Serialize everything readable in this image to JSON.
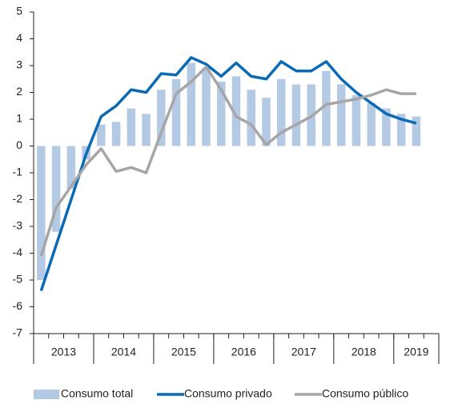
{
  "chart_data": {
    "type": "bar-line",
    "categories": [
      null,
      null,
      null,
      null,
      null,
      null,
      null,
      null,
      null,
      null,
      null,
      null,
      null,
      null,
      null,
      null,
      null,
      null,
      null,
      null,
      null,
      null,
      null,
      null,
      null,
      null,
      null
    ],
    "year_groups": [
      {
        "label": "2013",
        "n": 4
      },
      {
        "label": "2014",
        "n": 4
      },
      {
        "label": "2015",
        "n": 4
      },
      {
        "label": "2016",
        "n": 4
      },
      {
        "label": "2017",
        "n": 4
      },
      {
        "label": "2018",
        "n": 4
      },
      {
        "label": "2019",
        "n": 3
      }
    ],
    "series": [
      {
        "name": "Consumo total",
        "kind": "bar",
        "color": "#b4c9e4",
        "values": [
          -5.0,
          -3.2,
          -1.6,
          -0.5,
          0.8,
          0.9,
          1.4,
          1.2,
          2.1,
          2.5,
          3.1,
          2.9,
          2.4,
          2.6,
          2.1,
          1.8,
          2.5,
          2.3,
          2.3,
          2.8,
          2.3,
          1.9,
          1.6,
          1.4,
          1.2,
          1.1,
          null
        ]
      },
      {
        "name": "Consumo privado",
        "kind": "line",
        "color": "#0a6ab5",
        "values": [
          -5.4,
          -3.7,
          -2.0,
          -0.3,
          1.1,
          1.5,
          2.1,
          2.0,
          2.7,
          2.65,
          3.3,
          3.05,
          2.6,
          3.1,
          2.6,
          2.5,
          3.15,
          2.8,
          2.8,
          3.15,
          2.5,
          2.0,
          1.6,
          1.2,
          1.0,
          0.85,
          null
        ]
      },
      {
        "name": "Consumo público",
        "kind": "line",
        "color": "#a6a6a6",
        "values": [
          -4.1,
          -2.3,
          -1.5,
          -0.7,
          -0.1,
          -0.95,
          -0.8,
          -1.0,
          0.5,
          1.95,
          2.4,
          2.95,
          2.1,
          1.1,
          0.8,
          0.05,
          0.5,
          0.8,
          1.1,
          1.55,
          1.65,
          1.75,
          1.9,
          2.1,
          1.95,
          1.95,
          null
        ]
      }
    ],
    "ylim": [
      -7,
      5
    ],
    "yticks": [
      -7,
      -6,
      -5,
      -4,
      -3,
      -2,
      -1,
      0,
      1,
      2,
      3,
      4,
      5
    ],
    "legend": "bottom"
  }
}
